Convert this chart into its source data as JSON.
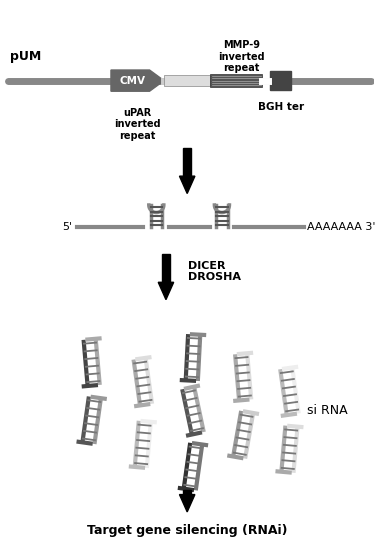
{
  "title": "pUM",
  "arrow_color": "#000000",
  "gray_line_color": "#aaaaaa",
  "dark_gray": "#555555",
  "light_gray": "#999999",
  "cmv_label": "CMV",
  "mmp9_label": "MMP-9\ninverted\nrepeat",
  "upar_label": "uPAR\ninverted\nrepeat",
  "bgh_label": "BGH ter",
  "dicer_label": "DICER\nDROSHA",
  "sirna_label": "si RNA",
  "five_prime": "5'",
  "three_prime": "AAAAAAA 3'",
  "bottom_label": "Target gene silencing (RNAi)",
  "bg_color": "#ffffff"
}
